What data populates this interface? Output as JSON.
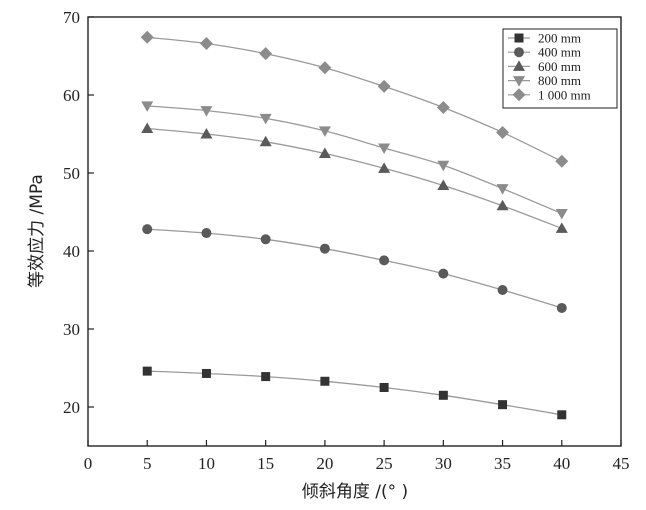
{
  "chart_data": {
    "type": "line",
    "title": "",
    "xlabel": "倾斜角度 /(° )",
    "ylabel": "等效应力 /MPa",
    "xlim": [
      0,
      45
    ],
    "ylim": [
      15,
      70
    ],
    "x_ticks": [
      0,
      5,
      10,
      15,
      20,
      25,
      30,
      35,
      40,
      45
    ],
    "y_ticks": [
      20,
      30,
      40,
      50,
      60,
      70
    ],
    "grid": false,
    "legend_position": "top-right",
    "x": [
      5,
      10,
      15,
      20,
      25,
      30,
      35,
      40
    ],
    "series": [
      {
        "name": "200 mm",
        "marker": "square",
        "values": [
          24.6,
          24.3,
          23.9,
          23.3,
          22.5,
          21.5,
          20.3,
          19.0
        ]
      },
      {
        "name": "400 mm",
        "marker": "circle",
        "values": [
          42.8,
          42.3,
          41.5,
          40.3,
          38.8,
          37.1,
          35.0,
          32.7
        ]
      },
      {
        "name": "600 mm",
        "marker": "triangle-up",
        "values": [
          55.7,
          55.0,
          54.0,
          52.5,
          50.6,
          48.4,
          45.8,
          42.9
        ]
      },
      {
        "name": "800 mm",
        "marker": "triangle-down",
        "values": [
          58.6,
          58.0,
          57.0,
          55.4,
          53.2,
          51.0,
          48.0,
          44.8
        ]
      },
      {
        "name": "1 000 mm",
        "marker": "diamond",
        "values": [
          67.4,
          66.6,
          65.3,
          63.5,
          61.1,
          58.4,
          55.2,
          51.5
        ]
      }
    ],
    "colors": {
      "line": "#9a9a9a",
      "marker_dark": "#333333",
      "marker_mid": "#5a5a5a",
      "marker_light": "#8c8c8c",
      "axis": "#222222"
    }
  }
}
